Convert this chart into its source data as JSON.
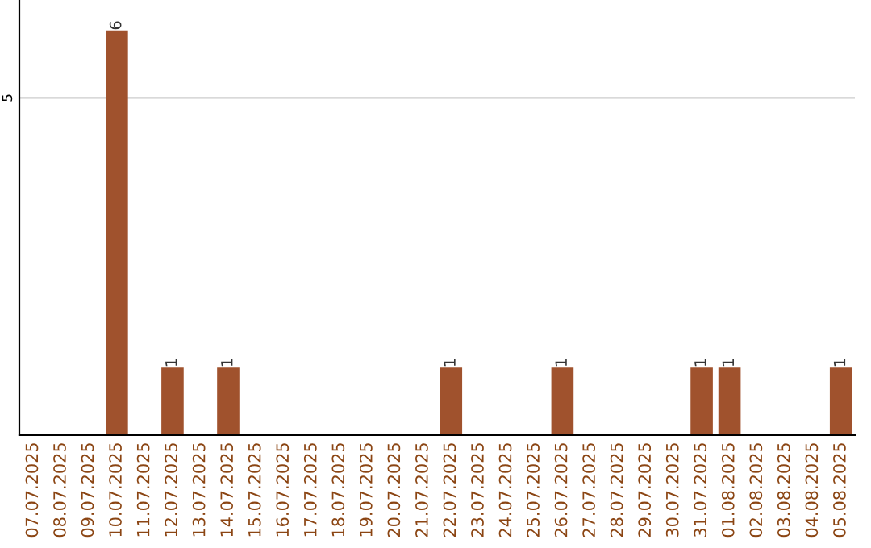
{
  "chart_data": {
    "type": "bar",
    "categories": [
      "07.07.2025",
      "08.07.2025",
      "09.07.2025",
      "10.07.2025",
      "11.07.2025",
      "12.07.2025",
      "13.07.2025",
      "14.07.2025",
      "15.07.2025",
      "16.07.2025",
      "17.07.2025",
      "18.07.2025",
      "19.07.2025",
      "20.07.2025",
      "21.07.2025",
      "22.07.2025",
      "23.07.2025",
      "24.07.2025",
      "25.07.2025",
      "26.07.2025",
      "27.07.2025",
      "28.07.2025",
      "29.07.2025",
      "30.07.2025",
      "31.07.2025",
      "01.08.2025",
      "02.08.2025",
      "03.08.2025",
      "04.08.2025",
      "05.08.2025"
    ],
    "values": [
      0,
      0,
      0,
      6,
      0,
      1,
      0,
      1,
      0,
      0,
      0,
      0,
      0,
      0,
      0,
      1,
      0,
      0,
      0,
      1,
      0,
      0,
      0,
      0,
      1,
      1,
      0,
      0,
      0,
      1
    ],
    "color": "#a0522d",
    "value_labels": [
      null,
      null,
      null,
      "6",
      null,
      "1",
      null,
      "1",
      null,
      null,
      null,
      null,
      null,
      null,
      null,
      "1",
      null,
      null,
      null,
      "1",
      null,
      null,
      null,
      null,
      "1",
      "1",
      null,
      null,
      null,
      "1"
    ],
    "ylim": [
      0,
      6.45
    ],
    "yticks": [
      5
    ],
    "grid": "y"
  }
}
